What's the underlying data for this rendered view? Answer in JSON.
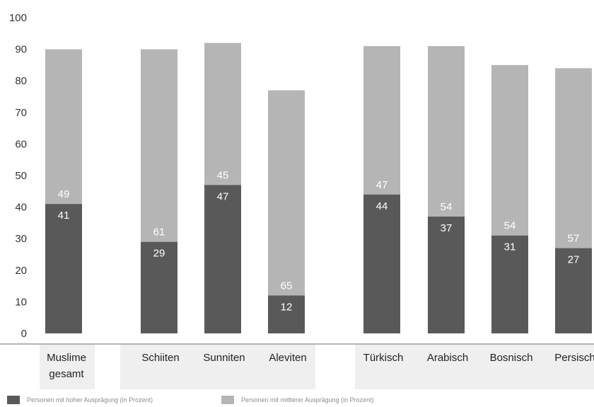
{
  "chart_data": {
    "type": "bar",
    "stacked": true,
    "ylim": [
      0,
      100
    ],
    "yticks": [
      0,
      10,
      20,
      30,
      40,
      50,
      60,
      70,
      80,
      90,
      100
    ],
    "grid": false,
    "legend_position": "bottom-left",
    "categories": [
      "Muslime gesamt",
      "Schiiten",
      "Sunniten",
      "Aleviten",
      "Türkisch",
      "Arabisch",
      "Bosnisch",
      "Persisch"
    ],
    "series": [
      {
        "name": "Personen mit hoher Ausprägung (in Prozent)",
        "color": "#595959",
        "values": [
          41,
          29,
          47,
          12,
          44,
          37,
          31,
          27
        ]
      },
      {
        "name": "Personen mit mittlerer Ausprägung (in Prozent)",
        "color": "#b5b5b5",
        "values": [
          49,
          61,
          45,
          65,
          47,
          54,
          54,
          57
        ]
      }
    ],
    "category_band_color": "#efefef"
  }
}
